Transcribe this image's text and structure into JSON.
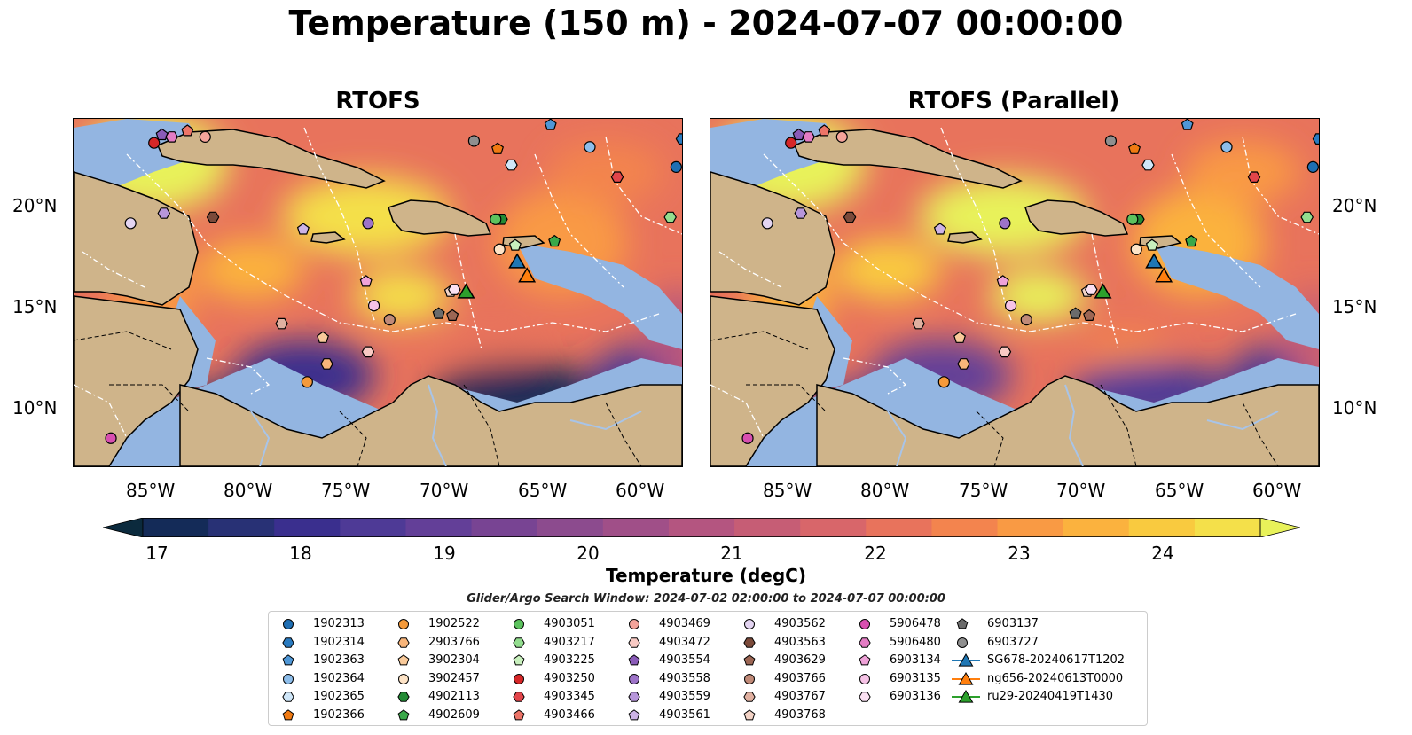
{
  "title": "Temperature (150 m) - 2024-07-07 00:00:00",
  "panels": [
    {
      "title": "RTOFS"
    },
    {
      "title": "RTOFS (Parallel)"
    }
  ],
  "lat_ticks": [
    "20°N",
    "15°N",
    "10°N"
  ],
  "lon_ticks": [
    "85°W",
    "80°W",
    "75°W",
    "70°W",
    "65°W",
    "60°W"
  ],
  "map_extent": {
    "lon": [
      -89,
      -58
    ],
    "lat": [
      7,
      24.3
    ]
  },
  "colorbar": {
    "label": "Temperature (degC)",
    "ticks": [
      "17",
      "18",
      "19",
      "20",
      "21",
      "22",
      "23",
      "24"
    ],
    "range": [
      16.5,
      24.5
    ],
    "colors": [
      "#0b2a3d",
      "#142b58",
      "#283175",
      "#3a2f8e",
      "#4e3a96",
      "#633f98",
      "#784493",
      "#8c4b8e",
      "#a04f88",
      "#b45580",
      "#c65d75",
      "#d8666a",
      "#e8735c",
      "#f3844e",
      "#f99a44",
      "#fbb23e",
      "#f9ca3f",
      "#f4e04a",
      "#e8f25a"
    ]
  },
  "search_window": "Glider/Argo Search Window: 2024-07-02 02:00:00 to 2024-07-07 00:00:00",
  "legend": [
    {
      "label": "1902313",
      "marker": "circle",
      "color": "#1f6fb4"
    },
    {
      "label": "1902314",
      "marker": "hexagon",
      "color": "#2a7bc0"
    },
    {
      "label": "1902363",
      "marker": "pentagon",
      "color": "#4f97d6"
    },
    {
      "label": "1902364",
      "marker": "circle",
      "color": "#8dbdea"
    },
    {
      "label": "1902365",
      "marker": "hexagon",
      "color": "#cfe6f8"
    },
    {
      "label": "1902366",
      "marker": "pentagon",
      "color": "#f07a12"
    },
    {
      "label": "1902522",
      "marker": "circle",
      "color": "#f59a3a"
    },
    {
      "label": "2903766",
      "marker": "hexagon",
      "color": "#f8b57a"
    },
    {
      "label": "3902304",
      "marker": "pentagon",
      "color": "#f9ca9a"
    },
    {
      "label": "3902457",
      "marker": "circle",
      "color": "#fde3c6"
    },
    {
      "label": "4902113",
      "marker": "hexagon",
      "color": "#238b35"
    },
    {
      "label": "4902609",
      "marker": "pentagon",
      "color": "#3aa849"
    },
    {
      "label": "4903051",
      "marker": "circle",
      "color": "#5cc25e"
    },
    {
      "label": "4903217",
      "marker": "hexagon",
      "color": "#93dd8f"
    },
    {
      "label": "4903225",
      "marker": "pentagon",
      "color": "#c8f0bd"
    },
    {
      "label": "4903250",
      "marker": "circle",
      "color": "#d62728"
    },
    {
      "label": "4903345",
      "marker": "hexagon",
      "color": "#e2454a"
    },
    {
      "label": "4903466",
      "marker": "pentagon",
      "color": "#ec7468"
    },
    {
      "label": "4903469",
      "marker": "circle",
      "color": "#f4a39a"
    },
    {
      "label": "4903472",
      "marker": "hexagon",
      "color": "#f9cac4"
    },
    {
      "label": "4903554",
      "marker": "pentagon",
      "color": "#8a5bb8"
    },
    {
      "label": "4903558",
      "marker": "circle",
      "color": "#9d73c8"
    },
    {
      "label": "4903559",
      "marker": "hexagon",
      "color": "#b796da"
    },
    {
      "label": "4903561",
      "marker": "pentagon",
      "color": "#cdb3e6"
    },
    {
      "label": "4903562",
      "marker": "circle",
      "color": "#e3d4f1"
    },
    {
      "label": "4903563",
      "marker": "hexagon",
      "color": "#7b4a3a"
    },
    {
      "label": "4903629",
      "marker": "pentagon",
      "color": "#9c6654"
    },
    {
      "label": "4903766",
      "marker": "circle",
      "color": "#c08a78"
    },
    {
      "label": "4903767",
      "marker": "hexagon",
      "color": "#e0b0a0"
    },
    {
      "label": "4903768",
      "marker": "pentagon",
      "color": "#f3d3c6"
    },
    {
      "label": "5906478",
      "marker": "circle",
      "color": "#d84fb0"
    },
    {
      "label": "5906480",
      "marker": "hexagon",
      "color": "#e47cc4"
    },
    {
      "label": "6903134",
      "marker": "pentagon",
      "color": "#efa2d8"
    },
    {
      "label": "6903135",
      "marker": "circle",
      "color": "#f6c3e6"
    },
    {
      "label": "6903136",
      "marker": "hexagon",
      "color": "#fbe1f2"
    },
    {
      "label": "6903137",
      "marker": "pentagon",
      "color": "#6b6b6b"
    },
    {
      "label": "6903727",
      "marker": "circle",
      "color": "#8f8f8f"
    },
    {
      "label": "SG678-20240617T1202",
      "marker": "triangle",
      "color": "#1f77b4"
    },
    {
      "label": "ng656-20240613T0000",
      "marker": "triangle",
      "color": "#ff7f0e"
    },
    {
      "label": "ru29-20240419T1430",
      "marker": "triangle",
      "color": "#2ca02c"
    }
  ],
  "floats": [
    {
      "id": "1902313",
      "lon": -58.3,
      "lat": 21.9
    },
    {
      "id": "1902314",
      "lon": -58.0,
      "lat": 23.3
    },
    {
      "id": "1902363",
      "lon": -64.7,
      "lat": 24.0
    },
    {
      "id": "1902364",
      "lon": -62.7,
      "lat": 22.9
    },
    {
      "id": "1902365",
      "lon": -66.7,
      "lat": 22.0
    },
    {
      "id": "1902366",
      "lon": -67.4,
      "lat": 22.8
    },
    {
      "id": "1902522",
      "lon": -77.1,
      "lat": 11.2
    },
    {
      "id": "2903766",
      "lon": -76.1,
      "lat": 12.1
    },
    {
      "id": "3902304",
      "lon": -76.3,
      "lat": 13.4
    },
    {
      "id": "3902457",
      "lon": -67.3,
      "lat": 17.8
    },
    {
      "id": "4902113",
      "lon": -67.2,
      "lat": 19.3
    },
    {
      "id": "4902609",
      "lon": -64.5,
      "lat": 18.2
    },
    {
      "id": "4903051",
      "lon": -67.5,
      "lat": 19.3
    },
    {
      "id": "4903217",
      "lon": -58.6,
      "lat": 19.4
    },
    {
      "id": "4903225",
      "lon": -66.5,
      "lat": 18.0
    },
    {
      "id": "4903250",
      "lon": -84.9,
      "lat": 23.1
    },
    {
      "id": "4903345",
      "lon": -61.3,
      "lat": 21.4
    },
    {
      "id": "4903466",
      "lon": -83.2,
      "lat": 23.7
    },
    {
      "id": "4903469",
      "lon": -82.3,
      "lat": 23.4
    },
    {
      "id": "4903472",
      "lon": -74.0,
      "lat": 12.7
    },
    {
      "id": "4903554",
      "lon": -84.5,
      "lat": 23.5
    },
    {
      "id": "4903558",
      "lon": -74.0,
      "lat": 19.1
    },
    {
      "id": "4903559",
      "lon": -84.4,
      "lat": 19.6
    },
    {
      "id": "4903561",
      "lon": -77.3,
      "lat": 18.8
    },
    {
      "id": "4903562",
      "lon": -86.1,
      "lat": 19.1
    },
    {
      "id": "4903563",
      "lon": -81.9,
      "lat": 19.4
    },
    {
      "id": "4903629",
      "lon": -69.7,
      "lat": 14.5
    },
    {
      "id": "4903766",
      "lon": -72.9,
      "lat": 14.3
    },
    {
      "id": "4903767",
      "lon": -78.4,
      "lat": 14.1
    },
    {
      "id": "4903768",
      "lon": -69.8,
      "lat": 15.7
    },
    {
      "id": "5906478",
      "lon": -87.1,
      "lat": 8.4
    },
    {
      "id": "5906480",
      "lon": -84.0,
      "lat": 23.4
    },
    {
      "id": "6903134",
      "lon": -74.1,
      "lat": 16.2
    },
    {
      "id": "6903135",
      "lon": -73.7,
      "lat": 15.0
    },
    {
      "id": "6903136",
      "lon": -69.6,
      "lat": 15.8
    },
    {
      "id": "6903137",
      "lon": -70.4,
      "lat": 14.6
    },
    {
      "id": "6903727",
      "lon": -68.6,
      "lat": 23.2
    }
  ],
  "gliders": [
    {
      "id": "SG678-20240617T1202",
      "lon": -66.4,
      "lat": 17.2
    },
    {
      "id": "ng656-20240613T0000",
      "lon": -65.9,
      "lat": 16.5
    },
    {
      "id": "ru29-20240419T1430",
      "lon": -69.0,
      "lat": 15.7
    }
  ]
}
